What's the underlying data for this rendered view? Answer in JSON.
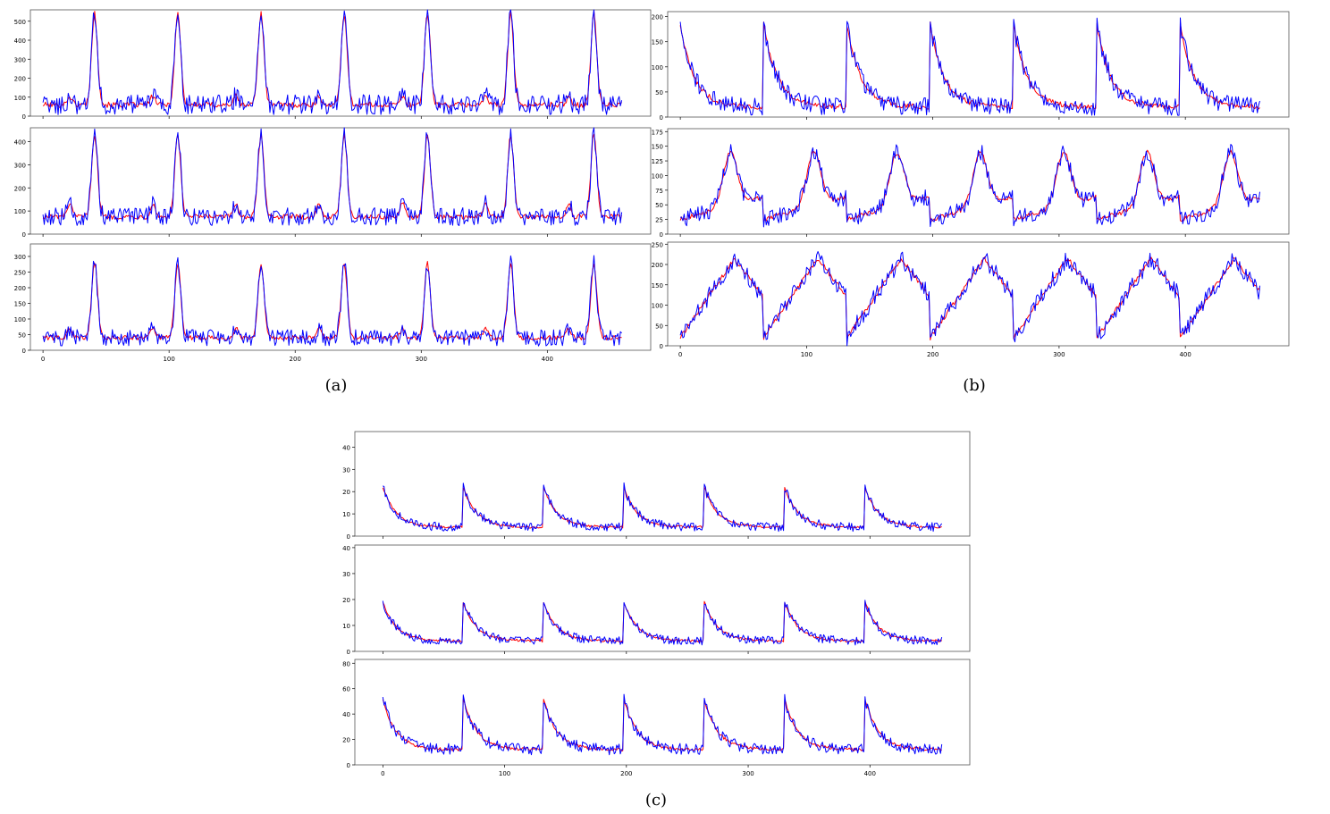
{
  "figure": {
    "captions": [
      "(a)",
      "(b)",
      "(c)"
    ],
    "colors": {
      "series_1": "#ff0000",
      "series_2": "#0000ff",
      "axes": "#000000"
    }
  },
  "chart_data": [
    {
      "group": "(a)",
      "row": 1,
      "type": "line",
      "ylim": [
        0,
        560
      ],
      "yticks": [
        0,
        100,
        200,
        300,
        400,
        500
      ],
      "xlim": [
        -10,
        482
      ],
      "xticks": [
        0,
        100,
        200,
        300,
        400
      ],
      "show_xticklabels": false,
      "period": 66,
      "peak": 540,
      "base": 60,
      "n": 460
    },
    {
      "group": "(a)",
      "row": 2,
      "type": "line",
      "ylim": [
        0,
        460
      ],
      "yticks": [
        0,
        100,
        200,
        300,
        400
      ],
      "xlim": [
        -10,
        482
      ],
      "xticks": [
        0,
        100,
        200,
        300,
        400
      ],
      "show_xticklabels": false,
      "period": 66,
      "peak": 430,
      "base": 75,
      "n": 460
    },
    {
      "group": "(a)",
      "row": 3,
      "type": "line",
      "ylim": [
        0,
        340
      ],
      "yticks": [
        0,
        50,
        100,
        150,
        200,
        250,
        300
      ],
      "xlim": [
        -10,
        482
      ],
      "xticks": [
        0,
        100,
        200,
        300,
        400
      ],
      "xticklabels": [
        "0",
        "100",
        "200",
        "300",
        "400"
      ],
      "show_xticklabels": true,
      "period": 66,
      "peak": 280,
      "base": 40,
      "n": 460
    },
    {
      "group": "(b)",
      "row": 1,
      "type": "line",
      "ylim": [
        0,
        210
      ],
      "yticks": [
        0,
        50,
        100,
        150,
        200
      ],
      "xlim": [
        -10,
        482
      ],
      "xticks": [
        0,
        100,
        200,
        300,
        400
      ],
      "show_xticklabels": false,
      "period": 66,
      "peak": 185,
      "base": 20,
      "n": 460
    },
    {
      "group": "(b)",
      "row": 2,
      "type": "line",
      "ylim": [
        0,
        180
      ],
      "yticks": [
        0,
        25,
        50,
        75,
        100,
        125,
        150,
        175
      ],
      "xlim": [
        -10,
        482
      ],
      "xticks": [
        0,
        100,
        200,
        300,
        400
      ],
      "show_xticklabels": false,
      "period": 66,
      "peak": 155,
      "base": 25,
      "n": 460
    },
    {
      "group": "(b)",
      "row": 3,
      "type": "line",
      "ylim": [
        0,
        255
      ],
      "yticks": [
        0,
        50,
        100,
        150,
        200,
        250
      ],
      "xlim": [
        -10,
        482
      ],
      "xticks": [
        0,
        100,
        200,
        300,
        400
      ],
      "xticklabels": [
        "0",
        "100",
        "200",
        "300",
        "400"
      ],
      "show_xticklabels": true,
      "period": 66,
      "peak": 215,
      "base": 20,
      "n": 460
    },
    {
      "group": "(c)",
      "row": 1,
      "type": "line",
      "ylim": [
        0,
        47
      ],
      "yticks": [
        0,
        10,
        20,
        30,
        40
      ],
      "xlim": [
        -23,
        482
      ],
      "xticks": [
        0,
        100,
        200,
        300,
        400
      ],
      "show_xticklabels": false,
      "period": 66,
      "peak": 22,
      "base": 4,
      "n": 460
    },
    {
      "group": "(c)",
      "row": 2,
      "type": "line",
      "ylim": [
        0,
        41
      ],
      "yticks": [
        0,
        10,
        20,
        30,
        40
      ],
      "xlim": [
        -23,
        482
      ],
      "xticks": [
        0,
        100,
        200,
        300,
        400
      ],
      "show_xticklabels": false,
      "period": 66,
      "peak": 19,
      "base": 4,
      "n": 460
    },
    {
      "group": "(c)",
      "row": 3,
      "type": "line",
      "ylim": [
        0,
        83
      ],
      "yticks": [
        0,
        20,
        40,
        60,
        80
      ],
      "xlim": [
        -23,
        482
      ],
      "xticks": [
        0,
        100,
        200,
        300,
        400
      ],
      "xticklabels": [
        "0",
        "100",
        "200",
        "300",
        "400"
      ],
      "show_xticklabels": true,
      "period": 66,
      "peak": 52,
      "base": 12,
      "n": 460
    }
  ]
}
